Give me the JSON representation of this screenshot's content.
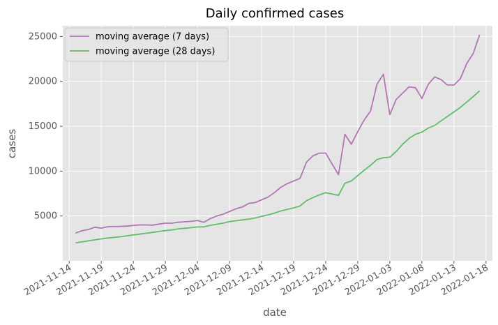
{
  "chart_data": {
    "type": "line",
    "title": "Daily confirmed cases",
    "xlabel": "date",
    "ylabel": "cases",
    "x_type": "date",
    "xlim": [
      "2021-11-13",
      "2022-01-19"
    ],
    "ylim": [
      0,
      26200
    ],
    "grid": true,
    "legend_placement": "top-left",
    "background": "#e5e5e5",
    "x_ticks": [
      "2021-11-14",
      "2021-11-19",
      "2021-11-24",
      "2021-11-29",
      "2021-12-04",
      "2021-12-09",
      "2021-12-14",
      "2021-12-19",
      "2021-12-24",
      "2021-12-29",
      "2022-01-03",
      "2022-01-08",
      "2022-01-13",
      "2022-01-18"
    ],
    "y_ticks": [
      5000,
      10000,
      15000,
      20000,
      25000
    ],
    "y_tick_labels": [
      "5000",
      "10000",
      "15000",
      "20000",
      "25000"
    ],
    "x": [
      "2021-11-15",
      "2021-11-16",
      "2021-11-17",
      "2021-11-18",
      "2021-11-19",
      "2021-11-20",
      "2021-11-21",
      "2021-11-22",
      "2021-11-23",
      "2021-11-24",
      "2021-11-25",
      "2021-11-26",
      "2021-11-27",
      "2021-11-28",
      "2021-11-29",
      "2021-11-30",
      "2021-12-01",
      "2021-12-02",
      "2021-12-03",
      "2021-12-04",
      "2021-12-05",
      "2021-12-06",
      "2021-12-07",
      "2021-12-08",
      "2021-12-09",
      "2021-12-10",
      "2021-12-11",
      "2021-12-12",
      "2021-12-13",
      "2021-12-14",
      "2021-12-15",
      "2021-12-16",
      "2021-12-17",
      "2021-12-18",
      "2021-12-19",
      "2021-12-20",
      "2021-12-21",
      "2021-12-22",
      "2021-12-23",
      "2021-12-24",
      "2021-12-25",
      "2021-12-26",
      "2021-12-27",
      "2021-12-28",
      "2021-12-29",
      "2021-12-30",
      "2021-12-31",
      "2022-01-01",
      "2022-01-02",
      "2022-01-03",
      "2022-01-04",
      "2022-01-05",
      "2022-01-06",
      "2022-01-07",
      "2022-01-08",
      "2022-01-09",
      "2022-01-10",
      "2022-01-11",
      "2022-01-12",
      "2022-01-13",
      "2022-01-14",
      "2022-01-15",
      "2022-01-16",
      "2022-01-17"
    ],
    "series": [
      {
        "name": "moving average (7 days)",
        "color": "#b276b2",
        "values": [
          3100,
          3350,
          3500,
          3750,
          3650,
          3800,
          3820,
          3830,
          3870,
          3950,
          4000,
          4000,
          3980,
          4100,
          4200,
          4200,
          4300,
          4350,
          4400,
          4500,
          4300,
          4700,
          5000,
          5200,
          5500,
          5800,
          6000,
          6400,
          6500,
          6800,
          7100,
          7600,
          8200,
          8600,
          8900,
          9200,
          11000,
          11700,
          12000,
          12000,
          10800,
          9600,
          14100,
          13000,
          14400,
          15700,
          16700,
          19700,
          20800,
          16300,
          18000,
          18700,
          19400,
          19300,
          18100,
          19700,
          20500,
          20200,
          19600,
          19600,
          20300,
          22000,
          23100,
          25200
        ]
      },
      {
        "name": "moving average (28 days)",
        "color": "#60bd68",
        "values": [
          2000,
          2120,
          2230,
          2340,
          2450,
          2540,
          2610,
          2690,
          2790,
          2890,
          2980,
          3070,
          3170,
          3270,
          3370,
          3450,
          3560,
          3630,
          3700,
          3780,
          3790,
          3960,
          4080,
          4200,
          4380,
          4470,
          4560,
          4650,
          4780,
          4950,
          5120,
          5320,
          5560,
          5730,
          5900,
          6120,
          6700,
          7050,
          7350,
          7600,
          7450,
          7300,
          8650,
          8900,
          9500,
          10100,
          10650,
          11300,
          11500,
          11550,
          12200,
          13000,
          13650,
          14100,
          14350,
          14800,
          15100,
          15600,
          16100,
          16600,
          17100,
          17700,
          18300,
          18950
        ]
      }
    ]
  }
}
